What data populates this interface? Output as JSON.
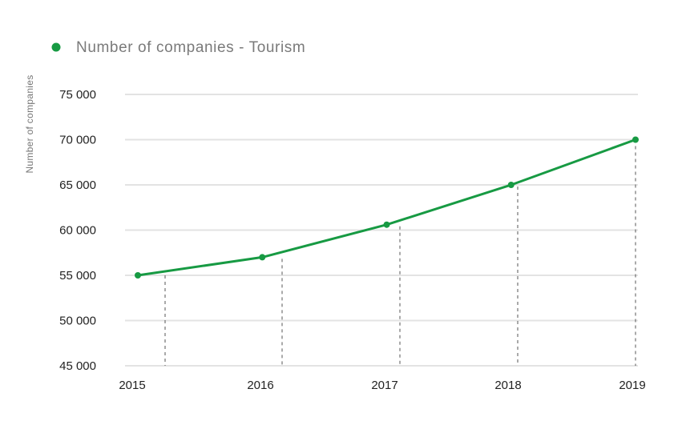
{
  "colors": {
    "series": "#179a43",
    "grid": "#e3e3e3",
    "guide": "#555555"
  },
  "chart_data": {
    "type": "line",
    "title": "",
    "legend": {
      "placement": "top-left"
    },
    "xlabel": "",
    "ylabel": "Number of companies",
    "x": [
      "2015",
      "2016",
      "2017",
      "2018",
      "2019"
    ],
    "yticks": [
      "75 000",
      "70 000",
      "65 000",
      "60 000",
      "55 000",
      "50 000",
      "45 000"
    ],
    "ylim": [
      45000,
      75000
    ],
    "grid": true,
    "series": [
      {
        "name": "Number of companies - Tourism",
        "values": [
          55000,
          57000,
          60600,
          65000,
          70000
        ]
      }
    ]
  }
}
